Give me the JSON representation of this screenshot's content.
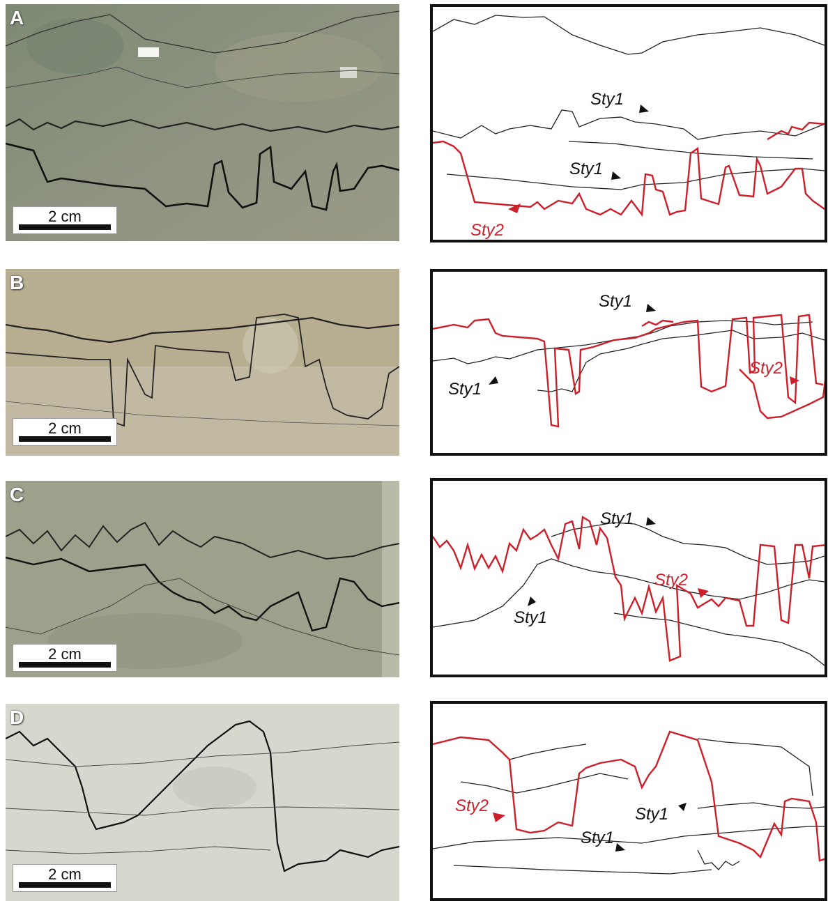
{
  "panels": [
    {
      "letter": "A",
      "scale": "2 cm",
      "labels": [
        "Sty1",
        "Sty1",
        "Sty2"
      ],
      "photo_color": "#8a917a"
    },
    {
      "letter": "B",
      "scale": "2 cm",
      "labels": [
        "Sty1",
        "Sty1",
        "Sty2"
      ],
      "photo_color": "#b6ab8f"
    },
    {
      "letter": "C",
      "scale": "2 cm",
      "labels": [
        "Sty1",
        "Sty1",
        "Sty2"
      ],
      "photo_color": "#9ea08c"
    },
    {
      "letter": "D",
      "scale": "2 cm",
      "labels": [
        "Sty2",
        "Sty1",
        "Sty1"
      ],
      "photo_color": "#d5d6cc"
    }
  ],
  "colors": {
    "sty1": "#222222",
    "sty2": "#cc1f2a"
  }
}
